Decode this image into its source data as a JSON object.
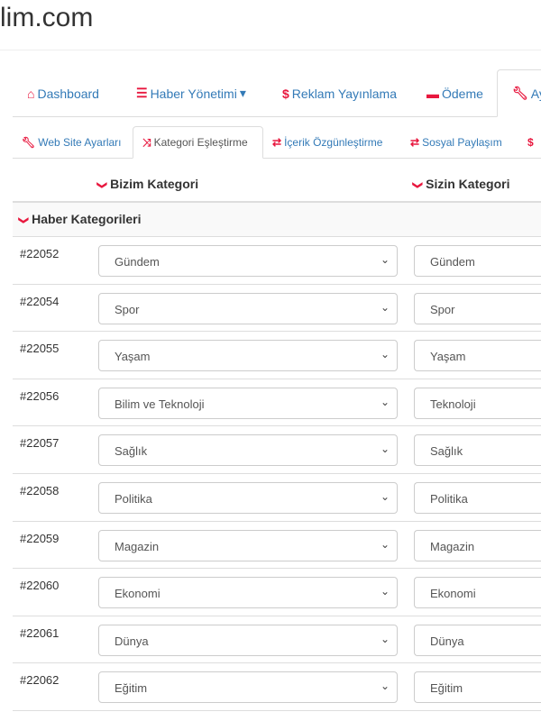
{
  "site_title": "lim.com",
  "nav": [
    {
      "icon": "home-icon",
      "glyph": "⌂",
      "label": "Dashboard"
    },
    {
      "icon": "list-icon",
      "glyph": "☰",
      "label": "Haber Yönetimi",
      "caret": "▾"
    },
    {
      "icon": "dollar-icon",
      "glyph": "$",
      "label": "Reklam Yayınlama"
    },
    {
      "icon": "credit-card-icon",
      "glyph": "▬",
      "label": "Ödeme"
    },
    {
      "icon": "wrench-icon",
      "glyph": "🔧︎",
      "label": "Ay"
    }
  ],
  "subnav": [
    {
      "icon": "wrench-icon",
      "glyph": "🔧︎",
      "label": "Web Site Ayarları"
    },
    {
      "icon": "shuffle-icon",
      "glyph": "⤨",
      "label": "Kategori Eşleştirme"
    },
    {
      "icon": "exchange-icon",
      "glyph": "⇄",
      "label": "İçerik Özgünleştirme"
    },
    {
      "icon": "exchange-icon",
      "glyph": "⇄",
      "label": "Sosyal Paylaşım"
    },
    {
      "icon": "dollar-icon",
      "glyph": "$",
      "label": ""
    }
  ],
  "table": {
    "col_ours": "Bizim Kategori",
    "col_yours": "Sizin Kategori",
    "group": "Haber Kategorileri",
    "rows": [
      {
        "id": "#22052",
        "ours": "Gündem",
        "yours": "Gündem"
      },
      {
        "id": "#22054",
        "ours": "Spor",
        "yours": "Spor"
      },
      {
        "id": "#22055",
        "ours": "Yaşam",
        "yours": "Yaşam"
      },
      {
        "id": "#22056",
        "ours": "Bilim ve Teknoloji",
        "yours": "Teknoloji"
      },
      {
        "id": "#22057",
        "ours": "Sağlık",
        "yours": "Sağlık"
      },
      {
        "id": "#22058",
        "ours": "Politika",
        "yours": "Politika"
      },
      {
        "id": "#22059",
        "ours": "Magazin",
        "yours": "Magazin"
      },
      {
        "id": "#22060",
        "ours": "Ekonomi",
        "yours": "Ekonomi"
      },
      {
        "id": "#22061",
        "ours": "Dünya",
        "yours": "Dünya"
      },
      {
        "id": "#22062",
        "ours": "Eğitim",
        "yours": "Eğitim"
      }
    ]
  },
  "colors": {
    "accent": "#e8173e",
    "link": "#337ab7"
  }
}
